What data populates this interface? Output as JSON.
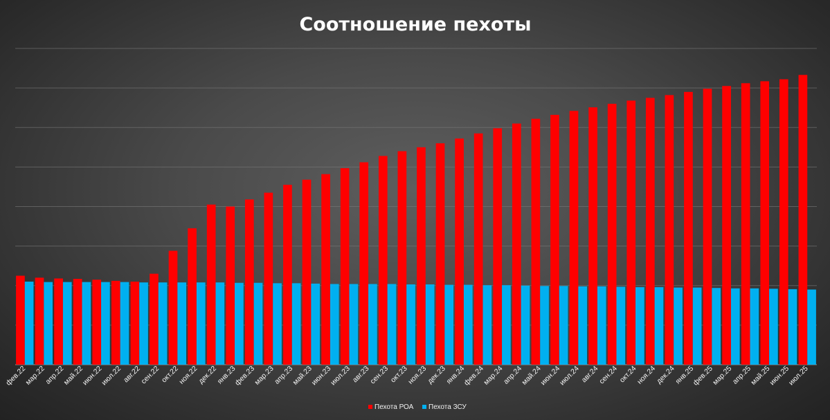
{
  "chart_data": {
    "type": "bar",
    "title": "Соотношение пехоты",
    "xlabel": "",
    "ylabel": "",
    "ylim": [
      0,
      8
    ],
    "grid": true,
    "legend": "bottom",
    "categories": [
      "фев.22",
      "мар.22",
      "апр.22",
      "май.22",
      "июн.22",
      "июл.22",
      "авг.22",
      "сен.22",
      "окт.22",
      "ноя.22",
      "дек.22",
      "янв.23",
      "фев.23",
      "мар.23",
      "апр.23",
      "май.23",
      "июн.23",
      "июл.23",
      "авг.23",
      "сен.23",
      "окт.23",
      "ноя.23",
      "дек.23",
      "янв.24",
      "фев.24",
      "мар.24",
      "апр.24",
      "май.24",
      "июн.24",
      "июл.24",
      "авг.24",
      "сен.24",
      "окт.24",
      "ноя.24",
      "дек.24",
      "янв.25",
      "фев.25",
      "мар.25",
      "апр.25",
      "май.25",
      "июн.25",
      "июл.25"
    ],
    "series": [
      {
        "name": "Пехота РОА",
        "color": "#ff0000",
        "values": [
          2.25,
          2.2,
          2.18,
          2.17,
          2.15,
          2.12,
          2.1,
          2.3,
          2.88,
          3.45,
          4.05,
          4.0,
          4.18,
          4.35,
          4.55,
          4.68,
          4.82,
          4.97,
          5.12,
          5.28,
          5.4,
          5.5,
          5.6,
          5.72,
          5.85,
          5.98,
          6.1,
          6.22,
          6.32,
          6.42,
          6.51,
          6.6,
          6.68,
          6.75,
          6.82,
          6.9,
          6.98,
          7.05,
          7.12,
          7.17,
          7.22,
          7.33
        ]
      },
      {
        "name": "Пехота ЗСУ",
        "color": "#00b0f0",
        "values": [
          2.1,
          2.09,
          2.09,
          2.09,
          2.09,
          2.09,
          2.08,
          2.08,
          2.08,
          2.08,
          2.08,
          2.07,
          2.07,
          2.06,
          2.06,
          2.05,
          2.04,
          2.04,
          2.04,
          2.04,
          2.03,
          2.03,
          2.02,
          2.02,
          2.01,
          2.01,
          2.0,
          1.99,
          1.99,
          1.98,
          1.98,
          1.97,
          1.96,
          1.96,
          1.95,
          1.95,
          1.94,
          1.93,
          1.93,
          1.92,
          1.91,
          1.9
        ]
      }
    ]
  }
}
